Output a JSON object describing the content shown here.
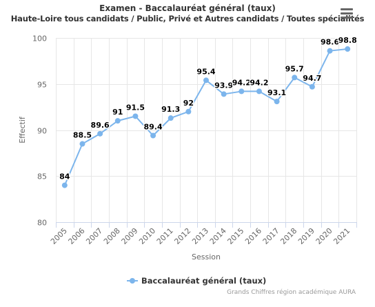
{
  "chart_data": {
    "type": "line",
    "title": "Examen - Baccalauréat général (taux)",
    "subtitle": "Haute-Loire tous candidats / Public, Privé et Autres candidats / Toutes spécialités",
    "xlabel": "Session",
    "ylabel": "Effectif",
    "categories": [
      "2005",
      "2006",
      "2007",
      "2008",
      "2009",
      "2010",
      "2011",
      "2012",
      "2013",
      "2014",
      "2015",
      "2016",
      "2017",
      "2018",
      "2019",
      "2020",
      "2021"
    ],
    "ylim": [
      80,
      100
    ],
    "yticks": [
      80,
      85,
      90,
      95,
      100
    ],
    "grid": true,
    "legend": "bottom-center",
    "series": [
      {
        "name": "Baccalauréat général (taux)",
        "color": "#7cb5ec",
        "values": [
          84,
          88.5,
          89.6,
          91,
          91.5,
          89.4,
          91.3,
          92,
          95.4,
          93.9,
          94.2,
          94.2,
          93.1,
          95.7,
          94.7,
          98.6,
          98.8
        ]
      }
    ]
  },
  "menu": {
    "icon": "hamburger-menu-icon"
  },
  "credits": "Grands Chiffres région académique AURA"
}
